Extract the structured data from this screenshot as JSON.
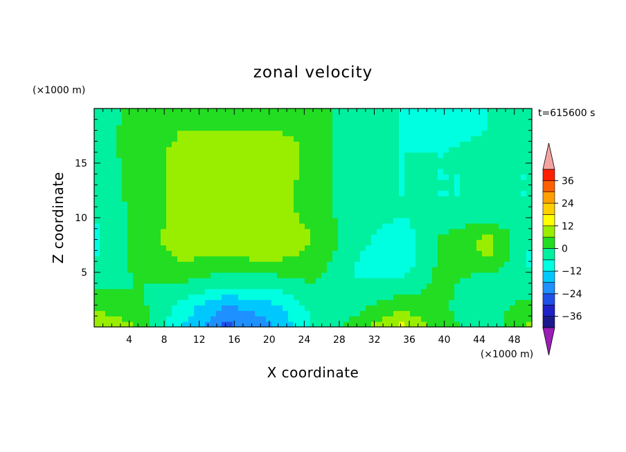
{
  "chart_data": {
    "type": "heatmap",
    "title": "zonal velocity",
    "xlabel": "X coordinate",
    "ylabel": "Z coordinate",
    "x_unit": "(×1000 m)",
    "y_unit": "(×1000 m)",
    "time_label": "t=615600 s",
    "xlim": [
      0,
      50
    ],
    "ylim": [
      0,
      20
    ],
    "x_ticks": [
      4,
      8,
      12,
      16,
      20,
      24,
      28,
      32,
      36,
      40,
      44,
      48
    ],
    "y_ticks": [
      5,
      10,
      15
    ],
    "colorbar": {
      "levels": [
        -42,
        -36,
        -30,
        -24,
        -18,
        -12,
        -6,
        0,
        6,
        12,
        18,
        24,
        30,
        36,
        42
      ],
      "tick_values": [
        -36,
        -24,
        -12,
        0,
        12,
        24,
        36
      ],
      "colors": [
        "#6a0dad",
        "#1a1a8c",
        "#2020c8",
        "#1e50e6",
        "#1e90ff",
        "#00c8ff",
        "#00ffe0",
        "#00f0a0",
        "#22dd22",
        "#99ee00",
        "#ffff00",
        "#ffd000",
        "#ffa000",
        "#ff6000",
        "#ff2000",
        "#ff0000"
      ],
      "under_color": "#9b1fb5",
      "over_color": "#f4a3a3"
    },
    "field_grid": {
      "x": [
        0,
        5,
        10,
        15,
        20,
        25,
        30,
        35,
        40,
        45,
        50
      ],
      "z": [
        0,
        2,
        4,
        6,
        8,
        10,
        12,
        14,
        16,
        18,
        20
      ],
      "values": [
        [
          12,
          6,
          -12,
          -26,
          -20,
          -6,
          3,
          14,
          2,
          -4,
          8
        ],
        [
          4,
          2,
          -8,
          -18,
          -14,
          -4,
          -2,
          4,
          0,
          -2,
          2
        ],
        [
          -2,
          0,
          0,
          -4,
          -4,
          0,
          -6,
          -4,
          2,
          -6,
          -4
        ],
        [
          -6,
          2,
          6,
          4,
          6,
          4,
          -6,
          -12,
          3,
          6,
          -8
        ],
        [
          -8,
          2,
          10,
          12,
          12,
          6,
          -4,
          -10,
          2,
          8,
          -6
        ],
        [
          -6,
          2,
          8,
          10,
          10,
          4,
          -4,
          -6,
          -4,
          -2,
          -4
        ],
        [
          -4,
          2,
          8,
          8,
          8,
          4,
          -4,
          -6,
          -6,
          -6,
          -6
        ],
        [
          -4,
          2,
          8,
          10,
          10,
          4,
          -4,
          -6,
          -6,
          -6,
          -6
        ],
        [
          -2,
          2,
          8,
          12,
          12,
          4,
          -4,
          -6,
          -6,
          -4,
          -4
        ],
        [
          -2,
          2,
          6,
          6,
          6,
          4,
          -4,
          -6,
          -8,
          -6,
          -4
        ],
        [
          -4,
          2,
          4,
          4,
          4,
          4,
          -4,
          -6,
          -8,
          -6,
          -4
        ]
      ]
    }
  }
}
